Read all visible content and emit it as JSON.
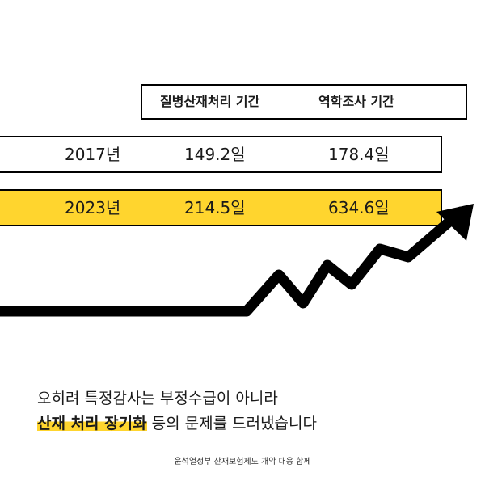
{
  "table": {
    "headers": [
      "질병산재처리 기간",
      "역학조사 기간"
    ],
    "rows": [
      {
        "year": "2017년",
        "disease_period": "149.2일",
        "epi_period": "178.4일"
      },
      {
        "year": "2023년",
        "disease_period": "214.5일",
        "epi_period": "634.6일"
      }
    ]
  },
  "caption": {
    "line1": "오히려 특정감사는 부정수급이 아니라",
    "line2_highlight": "산재 처리 장기화",
    "line2_rest": " 등의 문제를 드러냈습니다"
  },
  "footer": "윤석열정부 산재보험제도 개악 대응 함께",
  "colors": {
    "accent": "#ffd52e",
    "ink": "#000000"
  }
}
